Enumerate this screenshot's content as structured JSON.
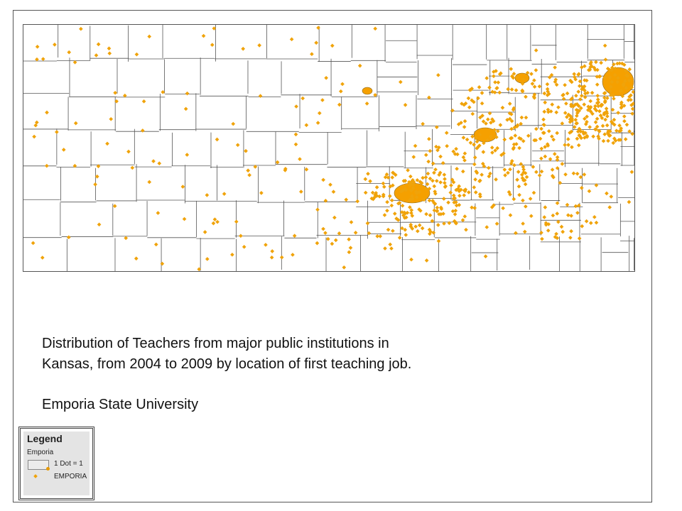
{
  "map": {
    "type": "dot-density",
    "region": "Kansas counties/districts",
    "dot_color": "#f0a30a",
    "boundary_color": "#555555"
  },
  "caption": {
    "line1": "Distribution of Teachers from major public institutions in",
    "line2": "Kansas, from 2004 to 2009 by location of first teaching job.",
    "institution": "Emporia State University"
  },
  "legend": {
    "title": "Legend",
    "layer": "Emporia",
    "dot_value": "1 Dot = 1",
    "series": "EMPORIA",
    "series_color": "#f0a30a"
  }
}
